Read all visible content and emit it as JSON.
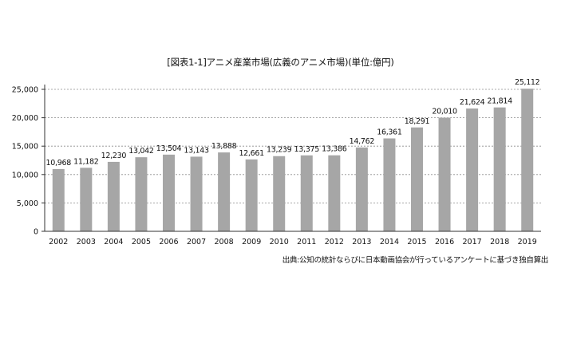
{
  "chart_data": {
    "type": "bar",
    "title": "[図表1-1]アニメ産業市場(広義のアニメ市場)(単位:億円)",
    "categories": [
      "2002",
      "2003",
      "2004",
      "2005",
      "2006",
      "2007",
      "2008",
      "2009",
      "2010",
      "2011",
      "2012",
      "2013",
      "2014",
      "2015",
      "2016",
      "2017",
      "2018",
      "2019"
    ],
    "values": [
      10968,
      11182,
      12230,
      13042,
      13504,
      13143,
      13888,
      12661,
      13239,
      13375,
      13386,
      14762,
      16361,
      18291,
      20010,
      21624,
      21814,
      25112
    ],
    "value_labels": [
      "10,968",
      "11,182",
      "12,230",
      "13,042",
      "13,504",
      "13,143",
      "13,888",
      "12,661",
      "13,239",
      "13,375",
      "13,386",
      "14,762",
      "16,361",
      "18,291",
      "20,010",
      "21,624",
      "21,814",
      "25,112"
    ],
    "ylim": [
      0,
      25000
    ],
    "yticks": [
      0,
      5000,
      10000,
      15000,
      20000,
      25000
    ],
    "ytick_labels": [
      "0",
      "5,000",
      "10,000",
      "15,000",
      "20,000",
      "25,000"
    ],
    "grid": true,
    "bar_color": "#a6a6a6",
    "xlabel": "",
    "ylabel": ""
  },
  "source": "出典:公知の統計ならびに日本動画協会が行っているアンケートに基づき独自算出"
}
